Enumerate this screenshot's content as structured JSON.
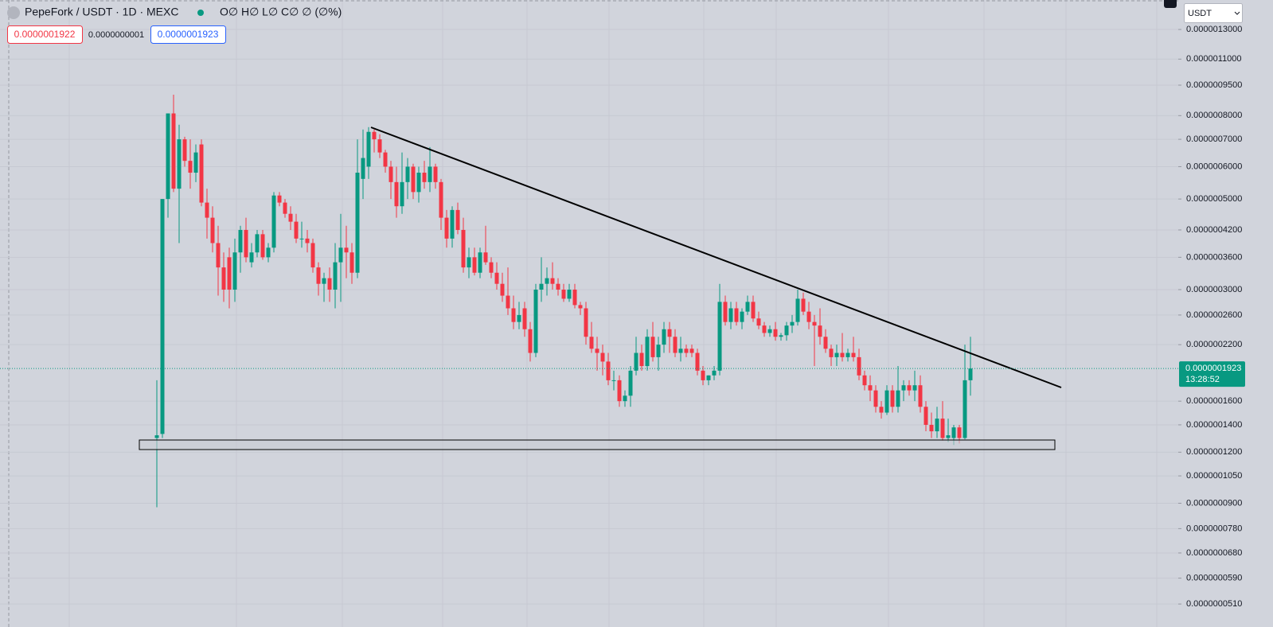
{
  "header": {
    "symbol": "PepeFork / USDT · 1D · MEXC",
    "ohlc": "O∅ H∅ L∅ C∅ ∅ (∅%)",
    "sell": "0.0000001922",
    "spread": "0.0000000001",
    "buy": "0.0000001923"
  },
  "currency": "USDT",
  "chart_data": {
    "type": "candlestick",
    "log_scale": true,
    "grid": true,
    "up_color": "#089981",
    "down_color": "#f23645",
    "ylim": [
      4.48e-08,
      1.535e-06
    ],
    "yticks": [
      {
        "value": 1.3e-06,
        "label": "0.0000013000"
      },
      {
        "value": 1.1e-06,
        "label": "0.0000011000"
      },
      {
        "value": 9.5e-07,
        "label": "0.0000009500"
      },
      {
        "value": 8e-07,
        "label": "0.0000008000"
      },
      {
        "value": 7e-07,
        "label": "0.0000007000"
      },
      {
        "value": 6e-07,
        "label": "0.0000006000"
      },
      {
        "value": 5e-07,
        "label": "0.0000005000"
      },
      {
        "value": 4.2e-07,
        "label": "0.0000004200"
      },
      {
        "value": 3.6e-07,
        "label": "0.0000003600"
      },
      {
        "value": 3e-07,
        "label": "0.0000003000"
      },
      {
        "value": 2.6e-07,
        "label": "0.0000002600"
      },
      {
        "value": 2.2e-07,
        "label": "0.0000002200"
      },
      {
        "value": 1.6e-07,
        "label": "0.0000001600"
      },
      {
        "value": 1.4e-07,
        "label": "0.0000001400"
      },
      {
        "value": 1.2e-07,
        "label": "0.0000001200"
      },
      {
        "value": 1.05e-07,
        "label": "0.0000001050"
      },
      {
        "value": 9e-08,
        "label": "0.0000000900"
      },
      {
        "value": 7.8e-08,
        "label": "0.0000000780"
      },
      {
        "value": 6.8e-08,
        "label": "0.0000000680"
      },
      {
        "value": 5.9e-08,
        "label": "0.0000000590"
      },
      {
        "value": 5.1e-08,
        "label": "0.0000000510"
      }
    ],
    "last_price": {
      "value": 1.923e-07,
      "label": "0.0000001923"
    },
    "countdown": "13:28:52",
    "open": [
      1.3e-07,
      1.33e-07,
      5e-07,
      8.1e-07,
      5.3e-07,
      7e-07,
      6.2e-07,
      5.8e-07,
      6.8e-07,
      4.9e-07,
      4.5e-07,
      3.9e-07,
      3.4e-07,
      3.6e-07,
      3e-07,
      3.7e-07,
      4.2e-07,
      3.5e-07,
      3.7e-07,
      4.1e-07,
      3.6e-07,
      3.8e-07,
      5.1e-07,
      4.9e-07,
      4.6e-07,
      4.4e-07,
      4e-07,
      4e-07,
      3.9e-07,
      3.4e-07,
      3.1e-07,
      3.2e-07,
      3e-07,
      3.5e-07,
      3.8e-07,
      3.7e-07,
      3.3e-07,
      5.6e-07,
      6e-07,
      7.3e-07,
      7e-07,
      6.5e-07,
      6e-07,
      5.5e-07,
      4.8e-07,
      5.5e-07,
      6e-07,
      5.2e-07,
      5.8e-07,
      5.5e-07,
      6e-07,
      5.5e-07,
      4.5e-07,
      4e-07,
      4.7e-07,
      4.2e-07,
      3.4e-07,
      3.6e-07,
      3.3e-07,
      3.7e-07,
      3.5e-07,
      3.3e-07,
      3.1e-07,
      2.9e-07,
      2.7e-07,
      2.5e-07,
      2.7e-07,
      2.4e-07,
      2.1e-07,
      3e-07,
      3.1e-07,
      3.2e-07,
      3.1e-07,
      3e-07,
      2.85e-07,
      3e-07,
      2.75e-07,
      2.7e-07,
      2.3e-07,
      2.15e-07,
      2.1e-07,
      2e-07,
      1.8e-07,
      1.8e-07,
      1.6e-07,
      1.65e-07,
      1.9e-07,
      2.1e-07,
      1.95e-07,
      2.3e-07,
      2.05e-07,
      2.2e-07,
      2.4e-07,
      2.3e-07,
      2.1e-07,
      2.15e-07,
      2.15e-07,
      2.1e-07,
      1.9e-07,
      1.8e-07,
      1.85e-07,
      1.9e-07,
      2.8e-07,
      2.5e-07,
      2.7e-07,
      2.5e-07,
      2.65e-07,
      2.8e-07,
      2.55e-07,
      2.45e-07,
      2.35e-07,
      2.4e-07,
      2.3e-07,
      2.32e-07,
      2.45e-07,
      2.5e-07,
      2.85e-07,
      2.65e-07,
      2.5e-07,
      2.45e-07,
      2.3e-07,
      2.15e-07,
      2.05e-07,
      2.1e-07,
      2.05e-07,
      2.1e-07,
      2.05e-07,
      1.85e-07,
      1.75e-07,
      1.7e-07,
      1.55e-07,
      1.5e-07,
      1.7e-07,
      1.55e-07,
      1.7e-07,
      1.75e-07,
      1.7e-07,
      1.75e-07,
      1.55e-07,
      1.4e-07,
      1.35e-07,
      1.45e-07,
      1.3e-07,
      1.3e-07,
      1.38e-07,
      1.3e-07,
      1.8e-07
    ],
    "high": [
      1.8e-07,
      5e-07,
      8.1e-07,
      9e-07,
      7.6e-07,
      7.1e-07,
      7e-07,
      6.8e-07,
      7e-07,
      5.3e-07,
      4.8e-07,
      4.3e-07,
      3.7e-07,
      3.8e-07,
      4e-07,
      4.3e-07,
      4.5e-07,
      3.9e-07,
      4.2e-07,
      4.2e-07,
      3.9e-07,
      5.2e-07,
      5.2e-07,
      5e-07,
      4.8e-07,
      4.6e-07,
      4.4e-07,
      4.2e-07,
      4e-07,
      3.5e-07,
      3.3e-07,
      3.4e-07,
      3.9e-07,
      4.6e-07,
      4.3e-07,
      3.9e-07,
      7e-07,
      7.4e-07,
      7.5e-07,
      7.4e-07,
      7.2e-07,
      6.6e-07,
      6.2e-07,
      6e-07,
      6.5e-07,
      6.3e-07,
      6.1e-07,
      6e-07,
      6.2e-07,
      6.7e-07,
      6.1e-07,
      5.6e-07,
      4.7e-07,
      4.8e-07,
      4.9e-07,
      4.5e-07,
      3.8e-07,
      3.8e-07,
      3.8e-07,
      4.3e-07,
      3.6e-07,
      3.5e-07,
      3.3e-07,
      3.4e-07,
      2.9e-07,
      2.8e-07,
      2.8e-07,
      2.5e-07,
      3.1e-07,
      3.6e-07,
      3.4e-07,
      3.5e-07,
      3.2e-07,
      3.1e-07,
      3.1e-07,
      3.1e-07,
      2.8e-07,
      2.8e-07,
      2.5e-07,
      2.3e-07,
      2.2e-07,
      2.1e-07,
      1.9e-07,
      1.85e-07,
      1.7e-07,
      1.95e-07,
      2.3e-07,
      2.2e-07,
      2.4e-07,
      2.5e-07,
      2.3e-07,
      2.5e-07,
      2.5e-07,
      2.4e-07,
      2.3e-07,
      2.2e-07,
      2.2e-07,
      2.15e-07,
      1.95e-07,
      1.85e-07,
      1.95e-07,
      3.1e-07,
      2.9e-07,
      2.8e-07,
      2.8e-07,
      2.7e-07,
      2.9e-07,
      2.9e-07,
      2.65e-07,
      2.5e-07,
      2.45e-07,
      2.5e-07,
      2.35e-07,
      2.5e-07,
      2.6e-07,
      3e-07,
      2.95e-07,
      2.8e-07,
      2.6e-07,
      2.7e-07,
      2.4e-07,
      2.2e-07,
      2.2e-07,
      2.35e-07,
      2.15e-07,
      2.3e-07,
      2.15e-07,
      1.9e-07,
      1.85e-07,
      1.75e-07,
      1.6e-07,
      1.75e-07,
      1.75e-07,
      1.95e-07,
      1.8e-07,
      1.8e-07,
      1.9e-07,
      1.85e-07,
      1.6e-07,
      1.5e-07,
      1.55e-07,
      1.6e-07,
      1.45e-07,
      1.4e-07,
      1.4e-07,
      2.2e-07,
      2.3e-07
    ],
    "low": [
      8.8e-08,
      1.3e-07,
      4.5e-07,
      5.2e-07,
      3.9e-07,
      6e-07,
      5.3e-07,
      5.5e-07,
      4.8e-07,
      4e-07,
      3.7e-07,
      2.9e-07,
      2.8e-07,
      2.7e-07,
      2.8e-07,
      3.3e-07,
      3.5e-07,
      3.4e-07,
      3.6e-07,
      3.55e-07,
      3.5e-07,
      3.7e-07,
      4.8e-07,
      4.5e-07,
      4.2e-07,
      3.9e-07,
      3.8e-07,
      3.7e-07,
      3.3e-07,
      2.9e-07,
      2.8e-07,
      2.8e-07,
      2.7e-07,
      2.8e-07,
      3.2e-07,
      3.1e-07,
      3.2e-07,
      5e-07,
      5.6e-07,
      6.5e-07,
      6.3e-07,
      5.8e-07,
      5e-07,
      4.5e-07,
      4.6e-07,
      5e-07,
      5e-07,
      4.9e-07,
      5.3e-07,
      5.2e-07,
      5.3e-07,
      4.2e-07,
      3.8e-07,
      3.8e-07,
      4.1e-07,
      3.3e-07,
      3.2e-07,
      3.25e-07,
      3.2e-07,
      3.45e-07,
      3.2e-07,
      3e-07,
      2.8e-07,
      2.6e-07,
      2.4e-07,
      2.4e-07,
      2.3e-07,
      2e-07,
      2.05e-07,
      2.8e-07,
      2.9e-07,
      3e-07,
      2.9e-07,
      2.8e-07,
      2.8e-07,
      2.7e-07,
      2.6e-07,
      2.2e-07,
      2.1e-07,
      1.9e-07,
      1.85e-07,
      1.75e-07,
      1.7e-07,
      1.55e-07,
      1.55e-07,
      1.55e-07,
      1.85e-07,
      1.9e-07,
      1.9e-07,
      2e-07,
      1.9e-07,
      2.1e-07,
      2.1e-07,
      2.05e-07,
      2e-07,
      2.05e-07,
      2.05e-07,
      1.85e-07,
      1.75e-07,
      1.75e-07,
      1.8e-07,
      1.85e-07,
      2.45e-07,
      2.4e-07,
      2.45e-07,
      2.4e-07,
      2.6e-07,
      2.5e-07,
      2.4e-07,
      2.3e-07,
      2.3e-07,
      2.25e-07,
      2.25e-07,
      2.25e-07,
      2.35e-07,
      2.45e-07,
      2.6e-07,
      2.4e-07,
      1.95e-07,
      2.2e-07,
      2.1e-07,
      1.95e-07,
      1.95e-07,
      2e-07,
      2e-07,
      2e-07,
      1.8e-07,
      1.7e-07,
      1.6e-07,
      1.5e-07,
      1.45e-07,
      1.48e-07,
      1.5e-07,
      1.5e-07,
      1.6e-07,
      1.65e-07,
      1.6e-07,
      1.5e-07,
      1.35e-07,
      1.3e-07,
      1.3e-07,
      1.28e-07,
      1.27e-07,
      1.25e-07,
      1.26e-07,
      1.29e-07,
      1.65e-07
    ],
    "close": [
      1.32e-07,
      5e-07,
      8.1e-07,
      5.3e-07,
      7e-07,
      6.2e-07,
      5.8e-07,
      6.5e-07,
      4.9e-07,
      4.5e-07,
      3.9e-07,
      3.4e-07,
      3e-07,
      3e-07,
      3.7e-07,
      4.2e-07,
      3.6e-07,
      3.7e-07,
      4.1e-07,
      3.6e-07,
      3.8e-07,
      5.1e-07,
      4.9e-07,
      4.6e-07,
      4.4e-07,
      4e-07,
      4e-07,
      3.9e-07,
      3.4e-07,
      3.1e-07,
      3.2e-07,
      3e-07,
      3.5e-07,
      3.8e-07,
      3.7e-07,
      3.3e-07,
      5.8e-07,
      6.3e-07,
      7.3e-07,
      7e-07,
      6.5e-07,
      6e-07,
      5.5e-07,
      4.8e-07,
      5.5e-07,
      6e-07,
      5.2e-07,
      5.8e-07,
      5.5e-07,
      6e-07,
      5.5e-07,
      4.5e-07,
      4e-07,
      4.7e-07,
      4.2e-07,
      3.4e-07,
      3.6e-07,
      3.3e-07,
      3.7e-07,
      3.5e-07,
      3.3e-07,
      3.1e-07,
      2.9e-07,
      2.7e-07,
      2.5e-07,
      2.6e-07,
      2.4e-07,
      2.1e-07,
      3e-07,
      3.1e-07,
      3.2e-07,
      3.1e-07,
      3e-07,
      2.85e-07,
      3e-07,
      2.75e-07,
      2.7e-07,
      2.3e-07,
      2.15e-07,
      2.1e-07,
      2e-07,
      1.8e-07,
      1.8e-07,
      1.6e-07,
      1.65e-07,
      1.9e-07,
      2.1e-07,
      1.95e-07,
      2.3e-07,
      2.05e-07,
      2.2e-07,
      2.4e-07,
      2.3e-07,
      2.1e-07,
      2.15e-07,
      2.1e-07,
      2.1e-07,
      1.9e-07,
      1.8e-07,
      1.85e-07,
      1.9e-07,
      2.8e-07,
      2.5e-07,
      2.7e-07,
      2.5e-07,
      2.65e-07,
      2.8e-07,
      2.55e-07,
      2.45e-07,
      2.35e-07,
      2.4e-07,
      2.3e-07,
      2.32e-07,
      2.45e-07,
      2.5e-07,
      2.85e-07,
      2.65e-07,
      2.5e-07,
      2.45e-07,
      2.3e-07,
      2.15e-07,
      2.05e-07,
      2.1e-07,
      2.05e-07,
      2.1e-07,
      2.05e-07,
      1.85e-07,
      1.75e-07,
      1.7e-07,
      1.55e-07,
      1.5e-07,
      1.7e-07,
      1.55e-07,
      1.7e-07,
      1.75e-07,
      1.7e-07,
      1.75e-07,
      1.55e-07,
      1.4e-07,
      1.35e-07,
      1.45e-07,
      1.3e-07,
      1.32e-07,
      1.38e-07,
      1.3e-07,
      1.8e-07,
      1.923e-07
    ]
  }
}
